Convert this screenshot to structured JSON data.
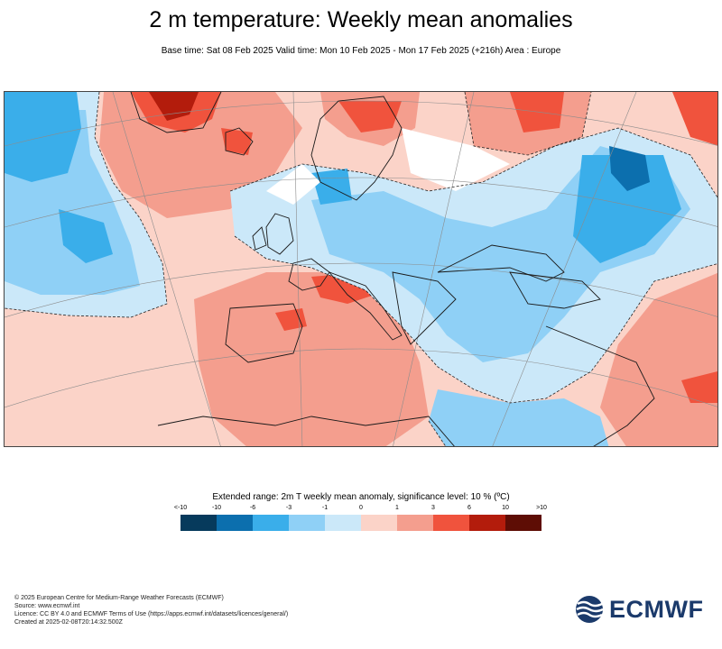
{
  "header": {
    "title": "2 m temperature: Weekly mean anomalies",
    "subtitle": "Base time: Sat 08 Feb 2025 Valid time: Mon 10 Feb 2025 - Mon 17 Feb 2025 (+216h) Area : Europe"
  },
  "legend": {
    "title": "Extended range: 2m T weekly mean anomaly, significance level: 10 % (ºC)",
    "ticks": [
      "<-10",
      "-10",
      "-6",
      "-3",
      "-1",
      "0",
      "1",
      "3",
      "6",
      "10",
      ">10"
    ],
    "colors": [
      "#063a5c",
      "#0c6fae",
      "#3aaeea",
      "#8fd0f6",
      "#cbe8f9",
      "#fbd3c8",
      "#f49e8e",
      "#f0533d",
      "#b31c0c",
      "#5e0d05"
    ]
  },
  "map": {
    "area": "Europe",
    "colors": {
      "background": "#fbd3c8",
      "cold_light": "#cbe8f9",
      "cold_mid": "#8fd0f6",
      "cold_strong": "#3aaeea",
      "cold_deep": "#0c6fae",
      "warm_mid": "#f49e8e",
      "warm_strong": "#f0533d",
      "warm_deep": "#b31c0c",
      "neutral": "#ffffff"
    }
  },
  "footer": {
    "lines": [
      "© 2025 European Centre for Medium-Range Weather Forecasts (ECMWF)",
      "Source: www.ecmwf.int",
      "Licence: CC BY 4.0 and ECMWF Terms of Use (https://apps.ecmwf.int/datasets/licences/general/)",
      "Created at 2025-02-08T20:14:32.500Z"
    ]
  },
  "logo": {
    "text": "ECMWF",
    "icon": "ecmwf-logo-icon"
  }
}
